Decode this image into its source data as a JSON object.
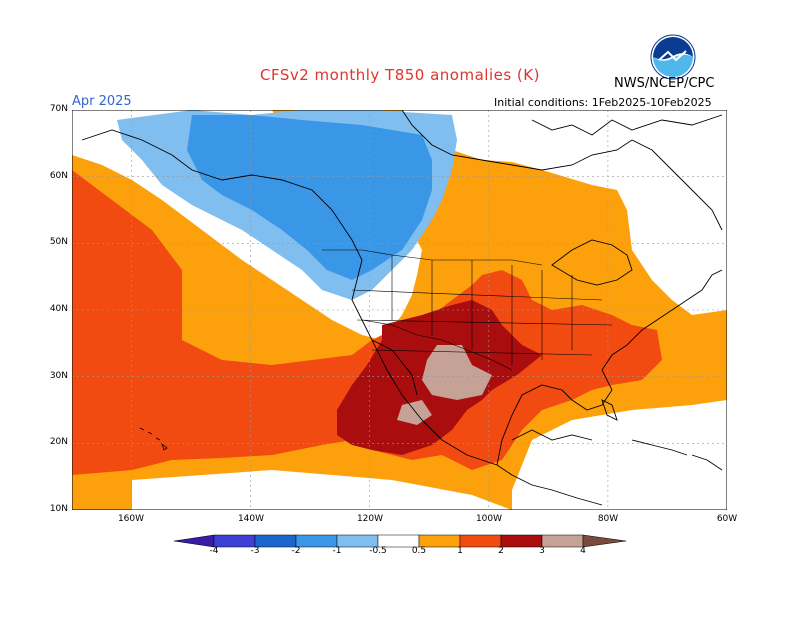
{
  "header": {
    "title": "CFSv2 monthly T850 anomalies (K)",
    "agency": "NWS/NCEP/CPC",
    "valid_month": "Apr 2025",
    "initial_conditions": "Initial conditions: 1Feb2025-10Feb2025"
  },
  "map": {
    "lat_labels": [
      "70N",
      "60N",
      "50N",
      "40N",
      "30N",
      "20N",
      "10N"
    ],
    "lon_labels": [
      "160W",
      "140W",
      "120W",
      "100W",
      "80W",
      "60W"
    ],
    "lat_values": [
      70,
      60,
      50,
      40,
      30,
      20,
      10
    ],
    "lon_values": [
      -160,
      -140,
      -120,
      -100,
      -80,
      -60
    ],
    "extent": {
      "lon_min": -170,
      "lon_max": -60,
      "lat_min": 10,
      "lat_max": 70
    }
  },
  "colorbar": {
    "labels": [
      "-4",
      "-3",
      "-2",
      "-1",
      "-0.5",
      "0.5",
      "1",
      "2",
      "3",
      "4"
    ],
    "colors": [
      "#3a1ba8",
      "#3d3fd6",
      "#1a66cc",
      "#3a96e6",
      "#80beef",
      "#ffffff",
      "#fca10b",
      "#f24b12",
      "#ea3b0b",
      "#a90d0d",
      "#c5a196",
      "#7a4a3c"
    ]
  },
  "anomaly_colors": {
    "strong_warm": "#a90d0d",
    "very_warm": "#c5a196",
    "warm": "#f24b12",
    "mild_warm": "#fca10b",
    "cool": "#80beef",
    "colder": "#3a96e6"
  }
}
